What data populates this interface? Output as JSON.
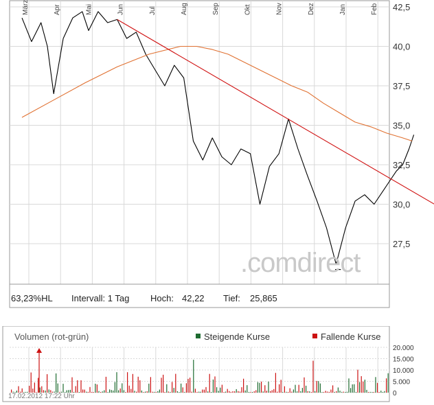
{
  "chart_data": [
    {
      "type": "line",
      "months": [
        "März",
        "Apr",
        "Mai",
        "Jun",
        "Jul",
        "Aug",
        "Sep",
        "Okt",
        "Nov",
        "Dez",
        "Jan",
        "Feb"
      ],
      "y_ticks": [
        "42,5",
        "40,0",
        "37,5",
        "35,0",
        "32,5",
        "30,0",
        "27,5"
      ],
      "y_tick_values": [
        42.5,
        40.0,
        37.5,
        35.0,
        32.5,
        30.0,
        27.5
      ],
      "ylim": [
        25.0,
        43.0
      ],
      "series": [
        {
          "color": "#000000",
          "kind": "price",
          "x": [
            0,
            0.3,
            0.6,
            0.8,
            1.0,
            1.3,
            1.6,
            1.9,
            2.1,
            2.4,
            2.7,
            3.0,
            3.3,
            3.6,
            3.9,
            4.2,
            4.5,
            4.8,
            5.1,
            5.4,
            5.7,
            6.0,
            6.3,
            6.6,
            6.9,
            7.2,
            7.5,
            7.8,
            8.1,
            8.4,
            8.7,
            9.0,
            9.3,
            9.6,
            9.9,
            10.2,
            10.5,
            10.8,
            11.1,
            11.4,
            11.6,
            11.8,
            12.0,
            12.2,
            12.35
          ],
          "y": [
            41.8,
            40.3,
            41.5,
            40.0,
            37.0,
            40.5,
            41.8,
            42.2,
            41.0,
            42.2,
            41.5,
            41.7,
            40.5,
            40.9,
            39.5,
            38.5,
            37.5,
            38.8,
            38.0,
            34.0,
            32.8,
            34.2,
            33.0,
            32.5,
            33.5,
            33.2,
            30.0,
            32.4,
            33.2,
            35.4,
            33.5,
            31.8,
            30.2,
            28.5,
            26.2,
            28.5,
            30.2,
            30.6,
            30.0,
            30.9,
            31.5,
            32.1,
            32.5,
            33.5,
            34.4
          ]
        },
        {
          "color": "#e07030",
          "kind": "moving-average",
          "x": [
            0,
            1,
            2,
            3,
            4,
            5,
            5.5,
            6,
            6.5,
            7,
            7.5,
            8,
            8.5,
            9,
            9.5,
            10,
            10.5,
            11,
            11.5,
            12,
            12.3
          ],
          "y": [
            35.5,
            36.6,
            37.7,
            38.7,
            39.5,
            40.0,
            40.0,
            39.8,
            39.5,
            39.0,
            38.5,
            38.0,
            37.5,
            37.1,
            36.4,
            35.8,
            35.2,
            34.9,
            34.5,
            34.2,
            34.0
          ]
        },
        {
          "color": "#d01010",
          "kind": "trendline",
          "x": [
            3.0,
            13.0
          ],
          "y": [
            41.7,
            30.0
          ]
        }
      ],
      "info": {
        "hl": "63,23%HL",
        "interval": "Intervall: 1 Tag",
        "high_label": "Hoch:",
        "high_value": "42,22",
        "low_label": "Tief:",
        "low_value": "25,865"
      },
      "watermark": ".comdirect"
    },
    {
      "type": "bar",
      "title": "Volumen (rot-grün)",
      "legend": [
        {
          "label": "Steigende Kurse",
          "color": "#1e6b30"
        },
        {
          "label": "Fallende Kurse",
          "color": "#cc1111"
        }
      ],
      "y_ticks": [
        "20.000",
        "15.000",
        "10.000",
        "5.000",
        "0"
      ],
      "y_tick_values": [
        20000,
        15000,
        10000,
        5000,
        0
      ],
      "ylim": [
        0,
        20000
      ]
    }
  ],
  "timestamp": "17.02.2012 17:22 Uhr",
  "colors": {
    "grid": "#d8d8d8",
    "border": "#9a9a9a",
    "up": "#1e6b30",
    "down": "#cc1111"
  }
}
